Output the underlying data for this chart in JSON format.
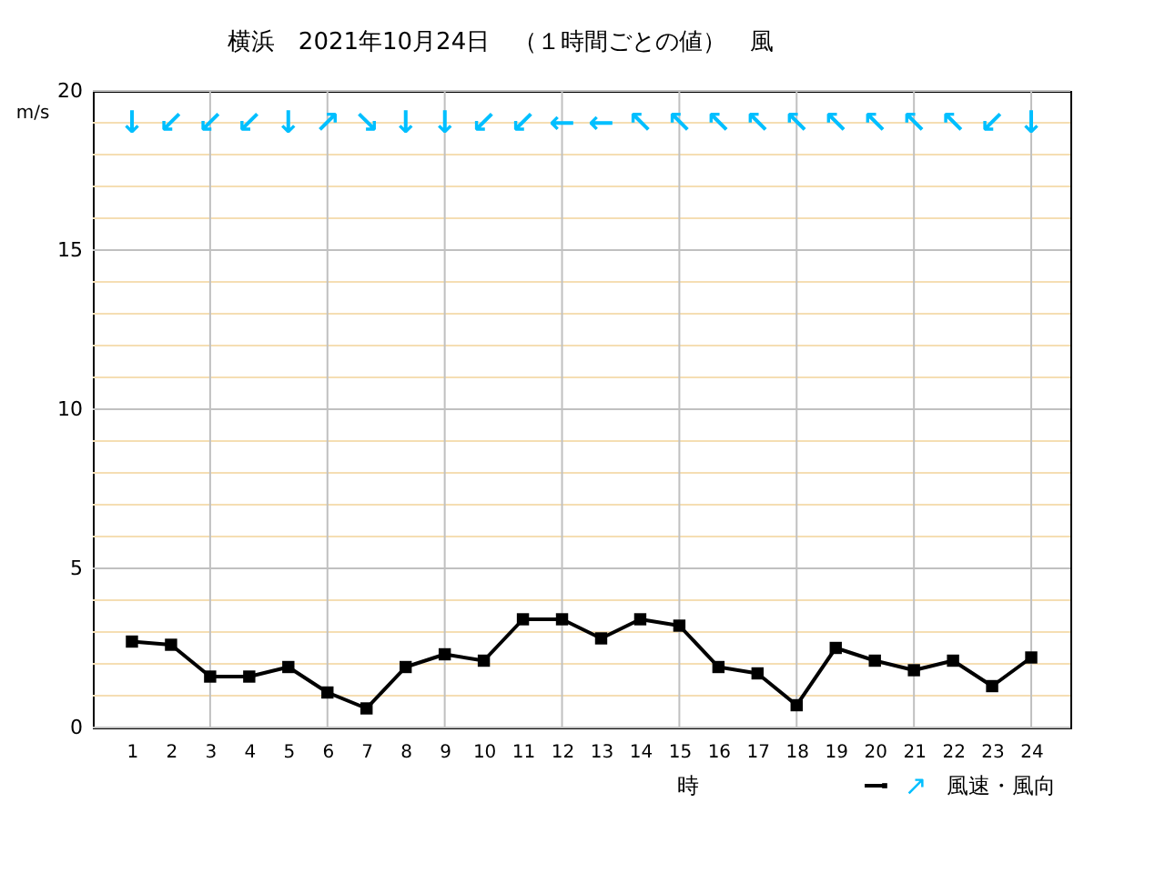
{
  "chart_data": {
    "type": "line",
    "title": "横浜　2021年10月24日　（１時間ごとの値）　風",
    "xlabel": "時",
    "ylabel": "m/s",
    "x": [
      1,
      2,
      3,
      4,
      5,
      6,
      7,
      8,
      9,
      10,
      11,
      12,
      13,
      14,
      15,
      16,
      17,
      18,
      19,
      20,
      21,
      22,
      23,
      24
    ],
    "series": [
      {
        "name": "風速・風向",
        "color": "#000000",
        "values": [
          2.7,
          2.6,
          1.6,
          1.6,
          1.9,
          1.1,
          0.6,
          1.9,
          2.3,
          2.1,
          3.4,
          3.4,
          2.8,
          3.4,
          3.2,
          1.9,
          1.7,
          0.7,
          2.5,
          2.1,
          1.8,
          2.1,
          1.3,
          2.2
        ]
      }
    ],
    "xlim": [
      0,
      25
    ],
    "xticks": [
      1,
      2,
      3,
      4,
      5,
      6,
      7,
      8,
      9,
      10,
      11,
      12,
      13,
      14,
      15,
      16,
      17,
      18,
      19,
      20,
      21,
      22,
      23,
      24
    ],
    "ylim": [
      0,
      20
    ],
    "yticks": [
      0,
      {
        "value": 1,
        "label": null
      },
      {
        "value": 2,
        "label": null
      },
      {
        "value": 3,
        "label": null
      },
      {
        "value": 4,
        "label": null
      },
      5,
      {
        "value": 6,
        "label": null
      },
      {
        "value": 7,
        "label": null
      },
      {
        "value": 8,
        "label": null
      },
      {
        "value": 9,
        "label": null
      },
      10,
      {
        "value": 11,
        "label": null
      },
      {
        "value": 12,
        "label": null
      },
      {
        "value": 13,
        "label": null
      },
      {
        "value": 14,
        "label": null
      },
      15,
      {
        "value": 16,
        "label": null
      },
      {
        "value": 17,
        "label": null
      },
      {
        "value": 18,
        "label": null
      },
      {
        "value": 19,
        "label": null
      },
      20
    ],
    "grid": true,
    "legend": "bottom right",
    "marker": "square",
    "line_style": "solid",
    "annotations": [
      "↓",
      "↙",
      "↙",
      "↙",
      "↓",
      "↗",
      "↘",
      "↓",
      "↓",
      "↙",
      "↙",
      "←",
      "←",
      "↖",
      "↖",
      "↖",
      "↖",
      "↖",
      "↖",
      "↖",
      "↖",
      "↖",
      "↙",
      "↓"
    ]
  }
}
